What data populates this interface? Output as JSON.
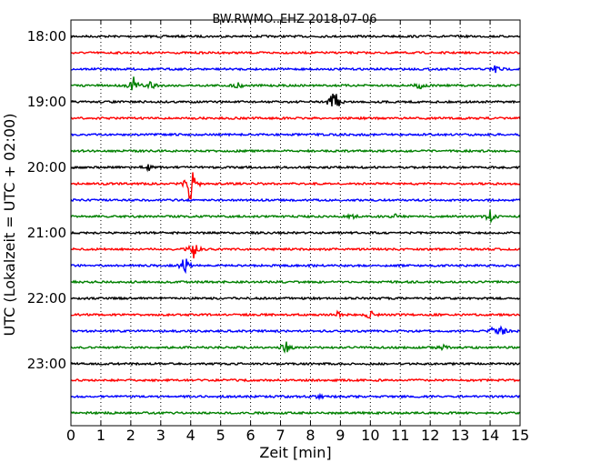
{
  "chart_data": {
    "type": "line",
    "title": "BW.RWMO..EHZ 2018-07-06",
    "xlabel": "Zeit  [min]",
    "ylabel": "UTC (Lokalzeit = UTC + 02:00)",
    "xlim": [
      0,
      15
    ],
    "xticks": [
      "0",
      "1",
      "2",
      "3",
      "4",
      "5",
      "6",
      "7",
      "8",
      "9",
      "10",
      "11",
      "12",
      "13",
      "14",
      "15"
    ],
    "ytick_labels": [
      "18:00",
      "19:00",
      "20:00",
      "21:00",
      "22:00",
      "23:00"
    ],
    "grid": "vertical dotted",
    "trace_colors": [
      "#000000",
      "#ff0000",
      "#0000ff",
      "#008000"
    ],
    "series": [
      {
        "start": "18:00",
        "events": []
      },
      {
        "start": "18:15",
        "events": []
      },
      {
        "start": "18:30",
        "events": [
          {
            "t": 14.2,
            "amp": 6
          }
        ]
      },
      {
        "start": "18:45",
        "events": [
          {
            "t": 2.1,
            "amp": 9
          },
          {
            "t": 2.7,
            "amp": 7
          },
          {
            "t": 5.6,
            "amp": 4
          },
          {
            "t": 11.7,
            "amp": 6
          }
        ]
      },
      {
        "start": "19:00",
        "events": [
          {
            "t": 8.8,
            "amp": 18
          }
        ]
      },
      {
        "start": "19:15",
        "events": []
      },
      {
        "start": "19:30",
        "events": []
      },
      {
        "start": "19:45",
        "events": []
      },
      {
        "start": "20:00",
        "events": [
          {
            "t": 2.6,
            "amp": 3
          }
        ]
      },
      {
        "start": "20:15",
        "events": [
          {
            "t": 4.0,
            "amp": 30
          }
        ]
      },
      {
        "start": "20:30",
        "events": []
      },
      {
        "start": "20:45",
        "events": [
          {
            "t": 9.4,
            "amp": 3
          },
          {
            "t": 10.8,
            "amp": 3
          },
          {
            "t": 14.0,
            "amp": 7
          }
        ]
      },
      {
        "start": "21:00",
        "events": []
      },
      {
        "start": "21:15",
        "events": [
          {
            "t": 4.1,
            "amp": 10
          }
        ]
      },
      {
        "start": "21:30",
        "events": [
          {
            "t": 3.8,
            "amp": 12
          }
        ]
      },
      {
        "start": "21:45",
        "events": []
      },
      {
        "start": "22:00",
        "events": []
      },
      {
        "start": "22:15",
        "events": [
          {
            "t": 8.9,
            "amp": 3
          },
          {
            "t": 10.0,
            "amp": 5
          }
        ]
      },
      {
        "start": "22:30",
        "events": [
          {
            "t": 14.1,
            "amp": 4
          },
          {
            "t": 14.4,
            "amp": 5
          }
        ]
      },
      {
        "start": "22:45",
        "events": [
          {
            "t": 7.2,
            "amp": 7
          },
          {
            "t": 12.4,
            "amp": 3
          }
        ]
      },
      {
        "start": "23:00",
        "events": []
      },
      {
        "start": "23:15",
        "events": []
      },
      {
        "start": "23:30",
        "events": [
          {
            "t": 8.3,
            "amp": 3
          }
        ]
      },
      {
        "start": "23:45",
        "events": []
      }
    ]
  }
}
